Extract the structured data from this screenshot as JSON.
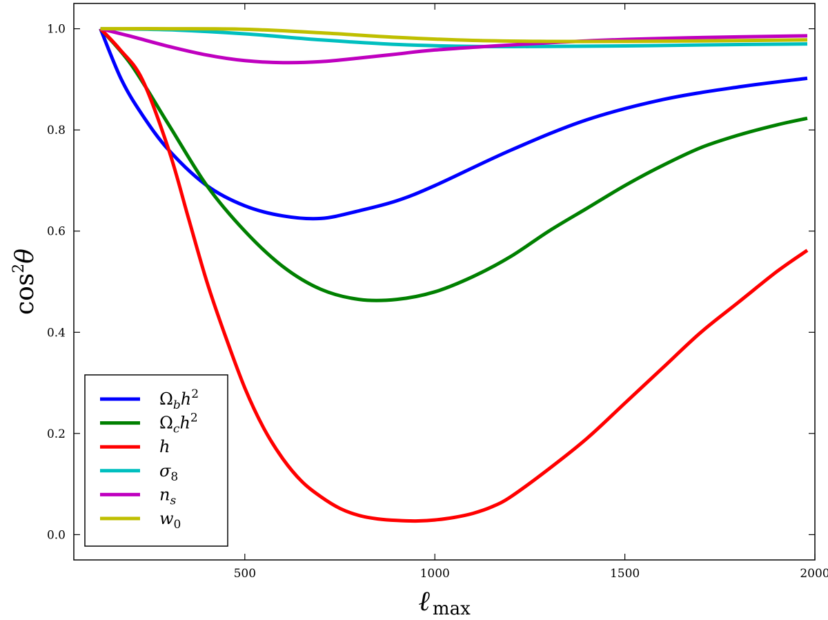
{
  "chart_data": {
    "type": "line",
    "title": "",
    "xlabel": "ℓ max",
    "ylabel": "cos²θ",
    "xlim": [
      50,
      2000
    ],
    "ylim": [
      -0.05,
      1.05
    ],
    "xticks": [
      500,
      1000,
      1500,
      2000
    ],
    "xtick_labels": [
      "500",
      "1000",
      "1500",
      "2000"
    ],
    "yticks": [
      0.0,
      0.2,
      0.4,
      0.6,
      0.8,
      1.0
    ],
    "ytick_labels": [
      "0.0",
      "0.2",
      "0.4",
      "0.6",
      "0.8",
      "1.0"
    ],
    "grid": false,
    "legend_position": "bottom-left",
    "series": [
      {
        "name": "Ω_b h^2",
        "label_parts": [
          [
            "Ω",
            ""
          ],
          [
            "b",
            "sub"
          ],
          [
            "h",
            ""
          ],
          [
            "2",
            "sup"
          ]
        ],
        "color": "#0000ff",
        "x": [
          120,
          175,
          230,
          300,
          400,
          500,
          600,
          700,
          800,
          900,
          1000,
          1200,
          1400,
          1600,
          1800,
          1980
        ],
        "y": [
          1.0,
          0.9,
          0.83,
          0.76,
          0.69,
          0.65,
          0.63,
          0.625,
          0.64,
          0.66,
          0.69,
          0.76,
          0.82,
          0.86,
          0.885,
          0.902
        ]
      },
      {
        "name": "Ω_c h^2",
        "label_parts": [
          [
            "Ω",
            ""
          ],
          [
            "c",
            "sub"
          ],
          [
            "h",
            ""
          ],
          [
            "2",
            "sup"
          ]
        ],
        "color": "#008000",
        "x": [
          120,
          200,
          300,
          400,
          500,
          600,
          700,
          800,
          900,
          1000,
          1100,
          1200,
          1300,
          1400,
          1500,
          1600,
          1700,
          1800,
          1900,
          1980
        ],
        "y": [
          1.0,
          0.93,
          0.81,
          0.69,
          0.6,
          0.53,
          0.485,
          0.465,
          0.465,
          0.48,
          0.51,
          0.55,
          0.6,
          0.645,
          0.69,
          0.73,
          0.765,
          0.79,
          0.81,
          0.823
        ]
      },
      {
        "name": "h",
        "label_parts": [
          [
            "h",
            ""
          ]
        ],
        "color": "#ff0000",
        "x": [
          120,
          170,
          230,
          300,
          350,
          400,
          450,
          500,
          550,
          600,
          650,
          700,
          750,
          800,
          850,
          900,
          950,
          1000,
          1050,
          1100,
          1150,
          1200,
          1300,
          1400,
          1500,
          1600,
          1700,
          1800,
          1900,
          1980
        ],
        "y": [
          1.0,
          0.96,
          0.9,
          0.76,
          0.63,
          0.5,
          0.39,
          0.29,
          0.21,
          0.15,
          0.105,
          0.075,
          0.052,
          0.038,
          0.031,
          0.028,
          0.027,
          0.029,
          0.034,
          0.042,
          0.055,
          0.075,
          0.13,
          0.19,
          0.26,
          0.33,
          0.4,
          0.46,
          0.52,
          0.562
        ]
      },
      {
        "name": "σ_8",
        "label_parts": [
          [
            "σ",
            ""
          ],
          [
            "8",
            "sub"
          ]
        ],
        "color": "#00bfbf",
        "x": [
          120,
          300,
          500,
          700,
          900,
          1100,
          1300,
          1500,
          1700,
          1980
        ],
        "y": [
          1.0,
          0.998,
          0.99,
          0.978,
          0.969,
          0.965,
          0.965,
          0.966,
          0.968,
          0.97
        ]
      },
      {
        "name": "n_s",
        "label_parts": [
          [
            "n",
            ""
          ],
          [
            "s",
            "sub"
          ]
        ],
        "color": "#bf00bf",
        "x": [
          120,
          200,
          300,
          400,
          500,
          600,
          700,
          800,
          900,
          1000,
          1200,
          1400,
          1600,
          1800,
          1980
        ],
        "y": [
          1.0,
          0.985,
          0.965,
          0.948,
          0.937,
          0.933,
          0.935,
          0.942,
          0.95,
          0.958,
          0.968,
          0.976,
          0.981,
          0.984,
          0.986
        ]
      },
      {
        "name": "w_0",
        "label_parts": [
          [
            "w",
            ""
          ],
          [
            "0",
            "sub"
          ]
        ],
        "color": "#bfbf00",
        "x": [
          120,
          300,
          500,
          700,
          900,
          1100,
          1300,
          1500,
          1700,
          1980
        ],
        "y": [
          1.0,
          1.0,
          0.999,
          0.992,
          0.983,
          0.977,
          0.975,
          0.975,
          0.976,
          0.978
        ]
      }
    ]
  }
}
